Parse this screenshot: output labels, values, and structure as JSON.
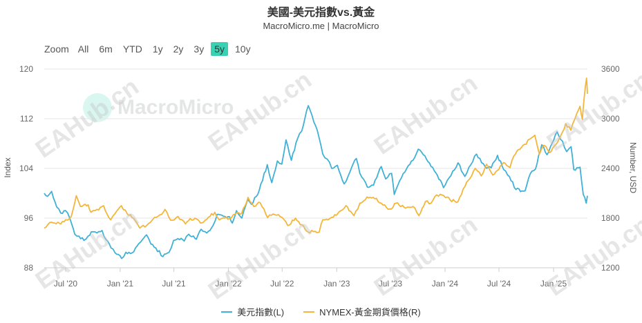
{
  "header": {
    "title": "美國-美元指數vs.黃金",
    "subtitle": "MacroMicro.me | MacroMicro"
  },
  "range_selector": {
    "zoom_label": "Zoom",
    "buttons": [
      "All",
      "6m",
      "YTD",
      "1y",
      "2y",
      "3y",
      "5y",
      "10y"
    ],
    "selected": "5y"
  },
  "watermarks": {
    "logo_text": "MacroMicro",
    "site_text": "EAHub.cn"
  },
  "colors": {
    "dxy": "#3fb0d6",
    "gold": "#f3b63a",
    "selected_button": "#39d1b4",
    "grid": "#e6e6e6"
  },
  "chart_data": {
    "type": "line",
    "title": "美國-美元指數vs.黃金",
    "subtitle": "MacroMicro.me | MacroMicro",
    "x_tick_labels": [
      "Jul '20",
      "Jan '21",
      "Jul '21",
      "Jan '22",
      "Jul '22",
      "Jan '23",
      "Jul '23",
      "Jan '24",
      "Jul '24",
      "Jan '25"
    ],
    "x_ticks": [
      "2020-07-01",
      "2021-01-01",
      "2021-07-01",
      "2022-01-01",
      "2022-07-01",
      "2023-01-01",
      "2023-07-01",
      "2024-01-01",
      "2024-07-01",
      "2025-01-01"
    ],
    "x_range": [
      "2020-04-20",
      "2025-04-25"
    ],
    "left_axis": {
      "label": "Index",
      "ticks": [
        88,
        96,
        104,
        112,
        120
      ],
      "ylim": [
        88,
        120
      ]
    },
    "right_axis": {
      "label": "Number, USD",
      "ticks": [
        1200,
        1800,
        2400,
        3000,
        3600
      ],
      "ylim": [
        1200,
        3600
      ]
    },
    "grid": true,
    "legend_position": "bottom-center",
    "series": [
      {
        "name": "美元指數(L)",
        "axis": "left",
        "color": "#3fb0d6",
        "points": [
          [
            "2020-04-20",
            100.0
          ],
          [
            "2020-05-01",
            99.5
          ],
          [
            "2020-05-15",
            100.3
          ],
          [
            "2020-06-01",
            97.8
          ],
          [
            "2020-06-15",
            96.8
          ],
          [
            "2020-07-01",
            97.2
          ],
          [
            "2020-07-15",
            96.0
          ],
          [
            "2020-08-01",
            93.4
          ],
          [
            "2020-08-15",
            93.1
          ],
          [
            "2020-09-01",
            92.4
          ],
          [
            "2020-09-15",
            93.1
          ],
          [
            "2020-10-01",
            93.8
          ],
          [
            "2020-10-15",
            93.6
          ],
          [
            "2020-11-01",
            94.0
          ],
          [
            "2020-11-15",
            92.5
          ],
          [
            "2020-12-01",
            91.2
          ],
          [
            "2020-12-15",
            90.4
          ],
          [
            "2021-01-06",
            89.5
          ],
          [
            "2021-01-20",
            90.5
          ],
          [
            "2021-02-10",
            90.4
          ],
          [
            "2021-03-05",
            91.9
          ],
          [
            "2021-03-31",
            93.3
          ],
          [
            "2021-04-15",
            91.8
          ],
          [
            "2021-05-01",
            91.2
          ],
          [
            "2021-05-25",
            89.8
          ],
          [
            "2021-06-15",
            90.5
          ],
          [
            "2021-06-30",
            92.4
          ],
          [
            "2021-07-15",
            92.7
          ],
          [
            "2021-08-05",
            92.3
          ],
          [
            "2021-08-20",
            93.4
          ],
          [
            "2021-09-15",
            92.6
          ],
          [
            "2021-10-01",
            94.2
          ],
          [
            "2021-10-20",
            93.6
          ],
          [
            "2021-11-10",
            94.8
          ],
          [
            "2021-11-24",
            96.6
          ],
          [
            "2021-12-15",
            96.3
          ],
          [
            "2022-01-05",
            96.2
          ],
          [
            "2022-01-14",
            95.2
          ],
          [
            "2022-01-28",
            97.2
          ],
          [
            "2022-02-15",
            96.0
          ],
          [
            "2022-03-07",
            99.0
          ],
          [
            "2022-03-20",
            98.2
          ],
          [
            "2022-04-15",
            100.5
          ],
          [
            "2022-05-12",
            104.6
          ],
          [
            "2022-05-27",
            101.7
          ],
          [
            "2022-06-15",
            105.2
          ],
          [
            "2022-06-30",
            104.7
          ],
          [
            "2022-07-14",
            108.6
          ],
          [
            "2022-08-01",
            105.3
          ],
          [
            "2022-08-22",
            108.8
          ],
          [
            "2022-09-05",
            110.0
          ],
          [
            "2022-09-27",
            114.1
          ],
          [
            "2022-10-10",
            112.5
          ],
          [
            "2022-10-27",
            110.2
          ],
          [
            "2022-11-15",
            106.3
          ],
          [
            "2022-11-30",
            105.5
          ],
          [
            "2022-12-15",
            104.0
          ],
          [
            "2023-01-03",
            104.5
          ],
          [
            "2023-01-26",
            101.5
          ],
          [
            "2023-02-15",
            103.5
          ],
          [
            "2023-03-08",
            105.6
          ],
          [
            "2023-03-20",
            103.2
          ],
          [
            "2023-04-14",
            101.0
          ],
          [
            "2023-05-05",
            101.3
          ],
          [
            "2023-05-31",
            104.3
          ],
          [
            "2023-06-15",
            102.3
          ],
          [
            "2023-07-05",
            103.2
          ],
          [
            "2023-07-14",
            99.8
          ],
          [
            "2023-08-01",
            102.0
          ],
          [
            "2023-08-25",
            104.0
          ],
          [
            "2023-09-15",
            105.3
          ],
          [
            "2023-10-03",
            107.1
          ],
          [
            "2023-10-20",
            106.2
          ],
          [
            "2023-11-15",
            104.3
          ],
          [
            "2023-12-01",
            103.3
          ],
          [
            "2023-12-27",
            100.9
          ],
          [
            "2024-01-15",
            102.5
          ],
          [
            "2024-02-14",
            104.9
          ],
          [
            "2024-03-08",
            102.7
          ],
          [
            "2024-03-28",
            104.6
          ],
          [
            "2024-04-16",
            106.3
          ],
          [
            "2024-05-15",
            104.3
          ],
          [
            "2024-06-05",
            104.1
          ],
          [
            "2024-06-26",
            106.1
          ],
          [
            "2024-07-17",
            103.8
          ],
          [
            "2024-08-05",
            102.7
          ],
          [
            "2024-08-27",
            100.6
          ],
          [
            "2024-09-27",
            100.4
          ],
          [
            "2024-10-15",
            103.2
          ],
          [
            "2024-11-01",
            103.9
          ],
          [
            "2024-11-22",
            107.8
          ],
          [
            "2024-12-10",
            106.2
          ],
          [
            "2025-01-13",
            109.9
          ],
          [
            "2025-01-31",
            108.4
          ],
          [
            "2025-02-14",
            106.7
          ],
          [
            "2025-03-01",
            107.5
          ],
          [
            "2025-03-10",
            103.8
          ],
          [
            "2025-03-31",
            104.2
          ],
          [
            "2025-04-11",
            99.8
          ],
          [
            "2025-04-21",
            98.4
          ],
          [
            "2025-04-25",
            99.6
          ]
        ]
      },
      {
        "name": "NYMEX-黃金期貨價格(R)",
        "axis": "right",
        "color": "#f3b63a",
        "points": [
          [
            "2020-04-20",
            1680
          ],
          [
            "2020-05-15",
            1750
          ],
          [
            "2020-06-15",
            1730
          ],
          [
            "2020-07-01",
            1780
          ],
          [
            "2020-07-20",
            1820
          ],
          [
            "2020-08-06",
            2070
          ],
          [
            "2020-08-20",
            1940
          ],
          [
            "2020-09-15",
            1960
          ],
          [
            "2020-09-25",
            1870
          ],
          [
            "2020-10-15",
            1905
          ],
          [
            "2020-11-06",
            1950
          ],
          [
            "2020-11-30",
            1780
          ],
          [
            "2020-12-15",
            1855
          ],
          [
            "2021-01-05",
            1950
          ],
          [
            "2021-01-25",
            1850
          ],
          [
            "2021-02-15",
            1800
          ],
          [
            "2021-03-08",
            1680
          ],
          [
            "2021-03-31",
            1710
          ],
          [
            "2021-04-20",
            1780
          ],
          [
            "2021-05-15",
            1840
          ],
          [
            "2021-06-01",
            1905
          ],
          [
            "2021-06-20",
            1775
          ],
          [
            "2021-07-15",
            1820
          ],
          [
            "2021-08-09",
            1730
          ],
          [
            "2021-08-25",
            1795
          ],
          [
            "2021-09-15",
            1790
          ],
          [
            "2021-09-29",
            1740
          ],
          [
            "2021-10-20",
            1785
          ],
          [
            "2021-11-16",
            1870
          ],
          [
            "2021-12-01",
            1780
          ],
          [
            "2021-12-20",
            1800
          ],
          [
            "2022-01-10",
            1800
          ],
          [
            "2022-01-25",
            1850
          ],
          [
            "2022-02-15",
            1860
          ],
          [
            "2022-03-08",
            2050
          ],
          [
            "2022-03-28",
            1940
          ],
          [
            "2022-04-18",
            1985
          ],
          [
            "2022-05-13",
            1805
          ],
          [
            "2022-06-01",
            1850
          ],
          [
            "2022-06-30",
            1810
          ],
          [
            "2022-07-20",
            1710
          ],
          [
            "2022-08-15",
            1800
          ],
          [
            "2022-09-05",
            1720
          ],
          [
            "2022-09-27",
            1630
          ],
          [
            "2022-10-20",
            1640
          ],
          [
            "2022-11-03",
            1630
          ],
          [
            "2022-11-15",
            1780
          ],
          [
            "2022-12-15",
            1810
          ],
          [
            "2023-01-10",
            1880
          ],
          [
            "2023-02-01",
            1950
          ],
          [
            "2023-02-28",
            1830
          ],
          [
            "2023-03-20",
            1980
          ],
          [
            "2023-04-13",
            2055
          ],
          [
            "2023-05-04",
            2050
          ],
          [
            "2023-05-31",
            1980
          ],
          [
            "2023-06-29",
            1910
          ],
          [
            "2023-07-20",
            1980
          ],
          [
            "2023-08-21",
            1920
          ],
          [
            "2023-09-15",
            1940
          ],
          [
            "2023-10-05",
            1830
          ],
          [
            "2023-10-27",
            2000
          ],
          [
            "2023-11-15",
            1980
          ],
          [
            "2023-12-04",
            2080
          ],
          [
            "2023-12-28",
            2070
          ],
          [
            "2024-01-18",
            2020
          ],
          [
            "2024-02-14",
            2000
          ],
          [
            "2024-03-08",
            2180
          ],
          [
            "2024-04-12",
            2400
          ],
          [
            "2024-05-02",
            2310
          ],
          [
            "2024-05-20",
            2450
          ],
          [
            "2024-06-10",
            2320
          ],
          [
            "2024-07-16",
            2470
          ],
          [
            "2024-08-07",
            2410
          ],
          [
            "2024-08-20",
            2550
          ],
          [
            "2024-09-25",
            2690
          ],
          [
            "2024-10-30",
            2800
          ],
          [
            "2024-11-14",
            2570
          ],
          [
            "2024-11-29",
            2680
          ],
          [
            "2024-12-19",
            2590
          ],
          [
            "2025-01-15",
            2720
          ],
          [
            "2025-01-30",
            2830
          ],
          [
            "2025-02-11",
            2940
          ],
          [
            "2025-02-28",
            2860
          ],
          [
            "2025-03-14",
            3000
          ],
          [
            "2025-03-31",
            3150
          ],
          [
            "2025-04-08",
            2990
          ],
          [
            "2025-04-14",
            3250
          ],
          [
            "2025-04-22",
            3490
          ],
          [
            "2025-04-25",
            3300
          ]
        ]
      }
    ]
  }
}
